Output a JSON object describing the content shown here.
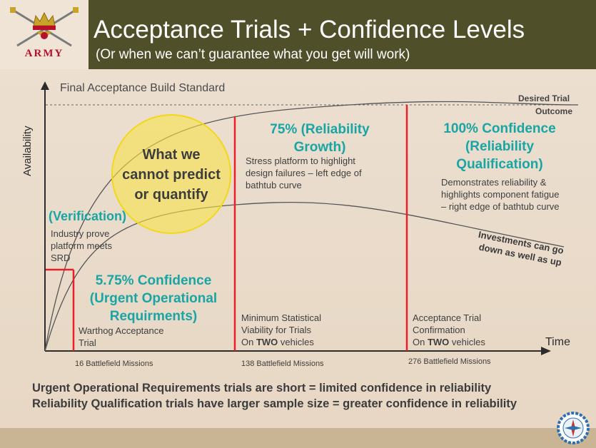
{
  "header": {
    "title": "Acceptance Trials + Confidence Levels",
    "subtitle": "(Or when we can’t guarantee what you get will work)",
    "logo_text": "ARMY"
  },
  "diagram": {
    "top_label": "Final Acceptance Build Standard",
    "y_axis_label": "Availability",
    "x_axis_label": "Time",
    "desired_line1": "Desired Trial",
    "desired_line2": "Outcome",
    "circle_line1": "What we",
    "circle_line2": "cannot predict",
    "circle_line3": "or quantify",
    "verification_title": "(Verification)",
    "verification_line1": "Industry prove",
    "verification_line2": "platform meets",
    "verification_line3": "SRD",
    "urgent_line1": "5.75% Confidence",
    "urgent_line2": "(Urgent Operational",
    "urgent_line3": "Requirments)",
    "warthog_line1": "Warthog Acceptance",
    "warthog_line2": "Trial",
    "growth_line1": "75% (Reliability",
    "growth_line2": "Growth)",
    "growth_desc1": "Stress platform to highlight",
    "growth_desc2": "design failures – left edge of",
    "growth_desc3": "bathtub curve",
    "qual_line1": "100% Confidence",
    "qual_line2": "(Reliability",
    "qual_line3": "Qualification)",
    "qual_desc1": "Demonstrates reliability &",
    "qual_desc2": "highlights component fatigue",
    "qual_desc3": "– right edge of bathtub curve",
    "investments_line1": "Investments can go",
    "investments_line2": "down as well as up",
    "min_line1": "Minimum Statistical",
    "min_line2": "Viability for Trials",
    "min_line3_pre": "On ",
    "min_line3_bold": "TWO",
    "min_line3_post": " vehicles",
    "accept_line1": "Acceptance Trial",
    "accept_line2": "Confirmation",
    "accept_line3_pre": "On ",
    "accept_line3_bold": "TWO",
    "accept_line3_post": " vehicles",
    "missions_1": "16 Battlefield Missions",
    "missions_2": "138 Battlefield Missions",
    "missions_3": "276 Battlefield Missions",
    "colors": {
      "red": "#e8202a",
      "teal": "#1aa5a5",
      "circle": "#f7e34a"
    }
  },
  "footer": {
    "line1": "Urgent Operational Requirements trials are short = limited confidence in reliability",
    "line2": "Reliability Qualification trials have larger sample size = greater confidence in reliability",
    "emblem_icon": "compass-gear-icon"
  }
}
